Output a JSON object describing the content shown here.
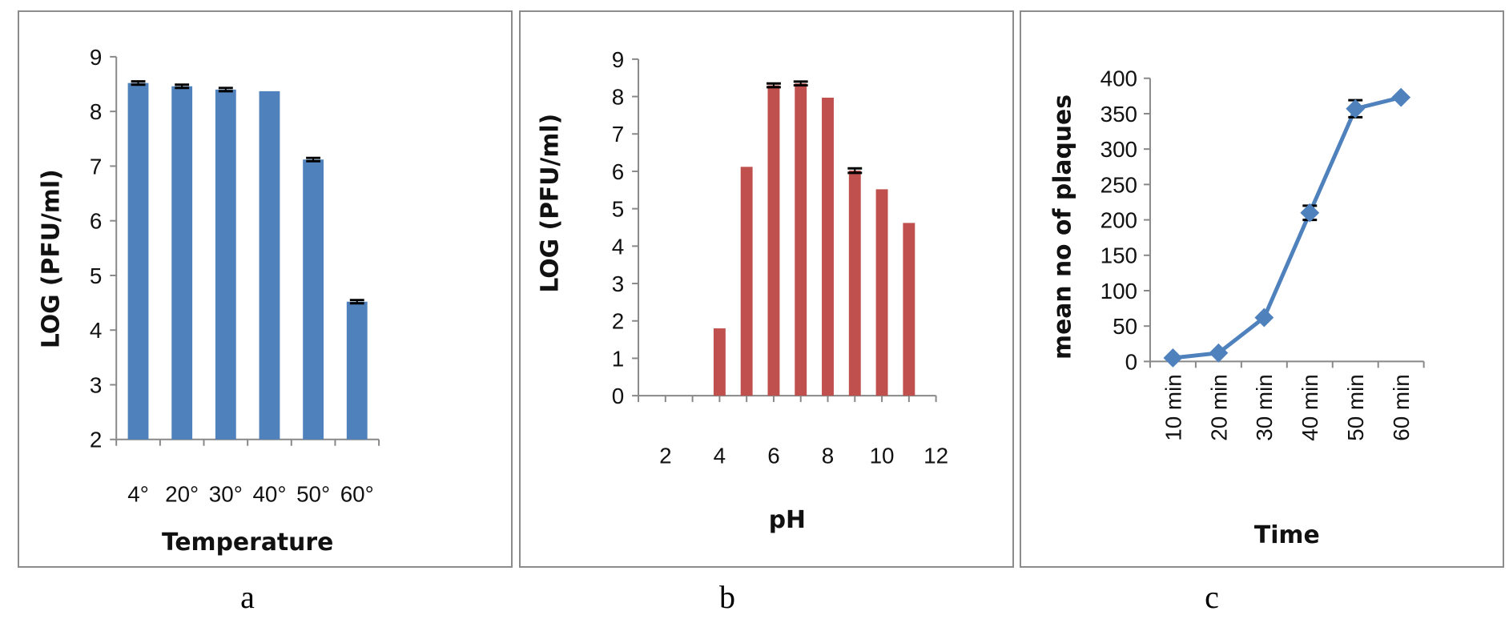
{
  "chart_data": [
    {
      "panel": "a",
      "type": "bar",
      "ylabel": "LOG (PFU/ml)",
      "xlabel": "Temperature",
      "categories": [
        "4°",
        "20°",
        "30°",
        "40°",
        "50°",
        "60°"
      ],
      "values": [
        8.52,
        8.46,
        8.4,
        8.37,
        7.12,
        4.52
      ],
      "error": [
        0.03,
        0.03,
        0.03,
        0,
        0.03,
        0.03
      ],
      "ylim": [
        2,
        9
      ],
      "yticks": [
        "2",
        "3",
        "4",
        "5",
        "6",
        "7",
        "8",
        "9"
      ],
      "color": "#4f81bd",
      "grid": false,
      "legend": "none"
    },
    {
      "panel": "b",
      "type": "bar",
      "ylabel": "LOG (PFU/ml)",
      "xlabel": "pH",
      "x": [
        4,
        5,
        6,
        7,
        8,
        9,
        10,
        11
      ],
      "values": [
        1.8,
        6.12,
        8.3,
        8.35,
        7.97,
        6.02,
        5.52,
        4.62
      ],
      "error": [
        0,
        0,
        0.05,
        0.05,
        0,
        0.06,
        0,
        0
      ],
      "ylim": [
        0,
        9
      ],
      "xlim": [
        1,
        12
      ],
      "yticks": [
        "0",
        "1",
        "2",
        "3",
        "4",
        "5",
        "6",
        "7",
        "8",
        "9"
      ],
      "xticks": [
        "2",
        "4",
        "6",
        "8",
        "10",
        "12"
      ],
      "color": "#c0504d",
      "grid": false,
      "legend": "none"
    },
    {
      "panel": "c",
      "type": "line",
      "ylabel": "mean no of plaques",
      "xlabel": "Time",
      "categories": [
        "10 min",
        "20 min",
        "30 min",
        "40 min",
        "50 min",
        "60 min"
      ],
      "values": [
        5,
        12,
        62,
        210,
        357,
        373
      ],
      "error": [
        0,
        0,
        0,
        10,
        12,
        0
      ],
      "ylim": [
        0,
        400
      ],
      "yticks": [
        "0",
        "50",
        "100",
        "150",
        "200",
        "250",
        "300",
        "350",
        "400"
      ],
      "color": "#4f81bd",
      "marker": "diamond",
      "grid": false,
      "legend": "none"
    }
  ],
  "labels": {
    "a": "a",
    "b": "b",
    "c": "c"
  }
}
